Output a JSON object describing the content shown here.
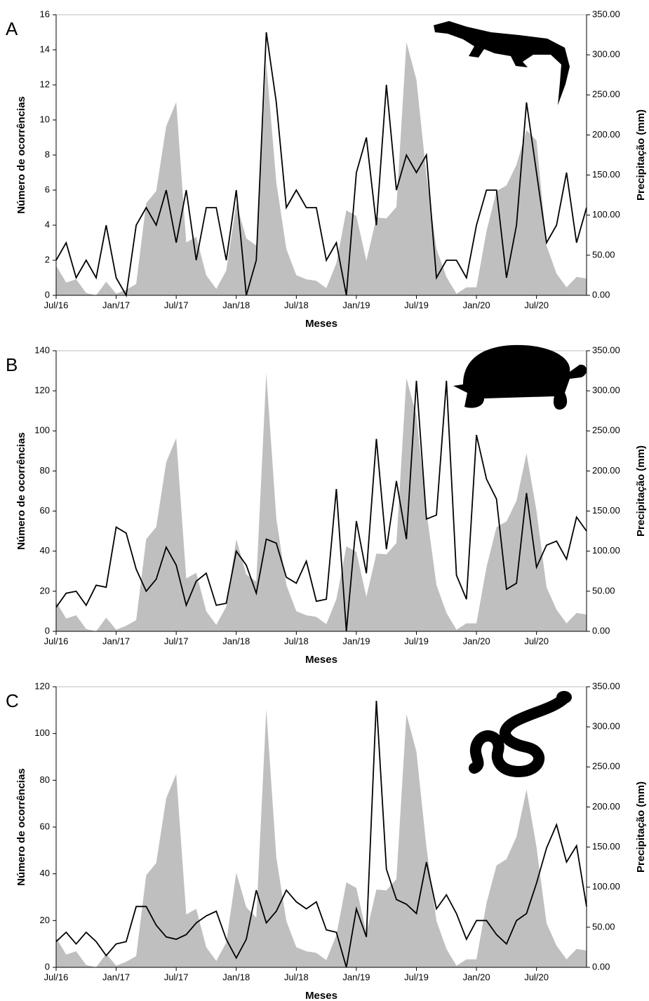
{
  "chart_data": [
    {
      "type": "line",
      "panel": "A",
      "x_label": "Meses",
      "y_label": "Número de ocorrências",
      "y2_label": "Precipitação (mm)",
      "categories": [
        "Jul/16",
        null,
        null,
        null,
        null,
        null,
        "Jan/17",
        null,
        null,
        null,
        null,
        null,
        "Jul/17",
        null,
        null,
        null,
        null,
        null,
        "Jan/18",
        null,
        null,
        null,
        null,
        null,
        "Jul/18",
        null,
        null,
        null,
        null,
        null,
        "Jan/19",
        null,
        null,
        null,
        null,
        null,
        "Jul/19",
        null,
        null,
        null,
        null,
        null,
        "Jan/20",
        null,
        null,
        null,
        null,
        null,
        "Jul/20",
        null,
        null,
        null,
        null,
        null
      ],
      "ylim": [
        0,
        16
      ],
      "yticks": [
        0,
        2,
        4,
        6,
        8,
        10,
        12,
        14,
        16
      ],
      "y2lim": [
        0,
        350
      ],
      "y2ticks": [
        {
          "value": 0,
          "label": "0.00"
        },
        {
          "value": 50,
          "label": "50.00"
        },
        {
          "value": 100,
          "label": "100.00"
        },
        {
          "value": 150,
          "label": "150.00"
        },
        {
          "value": 200,
          "label": "200.00"
        },
        {
          "value": 250,
          "label": "250.00"
        },
        {
          "value": 300,
          "label": "300.00"
        },
        {
          "value": 350,
          "label": "350.00"
        }
      ],
      "series": [
        {
          "type": "area",
          "axis": "y2",
          "color": "#bfbfbf",
          "values": [
            37,
            16,
            20,
            3,
            0,
            17,
            2,
            7,
            14,
            115,
            130,
            211,
            241,
            66,
            73,
            25,
            8,
            31,
            115,
            71,
            62,
            290,
            141,
            58,
            25,
            20,
            18,
            9,
            40,
            106,
            99,
            43,
            97,
            96,
            110,
            316,
            269,
            150,
            58,
            23,
            2,
            10,
            10,
            80,
            130,
            137,
            163,
            206,
            193,
            62,
            27,
            10,
            23,
            21
          ]
        },
        {
          "type": "line",
          "color": "#000000",
          "values": [
            2,
            3,
            1,
            2,
            1,
            4,
            1,
            0,
            4,
            5,
            4,
            6,
            3,
            6,
            2,
            5,
            5,
            2,
            6,
            0,
            2,
            15,
            11,
            5,
            6,
            5,
            5,
            2,
            3,
            0,
            7,
            9,
            4,
            12,
            6,
            8,
            7,
            8,
            1,
            2,
            2,
            1,
            4,
            6,
            6,
            1,
            4,
            11,
            7,
            3,
            4,
            7,
            3,
            5
          ]
        }
      ]
    },
    {
      "type": "line",
      "panel": "B",
      "x_label": "Meses",
      "y_label": "Número de ocorrências",
      "y2_label": "Precipitação (mm)",
      "categories": [
        "Jul/16",
        null,
        null,
        null,
        null,
        null,
        "Jan/17",
        null,
        null,
        null,
        null,
        null,
        "Jul/17",
        null,
        null,
        null,
        null,
        null,
        "Jan/18",
        null,
        null,
        null,
        null,
        null,
        "Jul/18",
        null,
        null,
        null,
        null,
        null,
        "Jan/19",
        null,
        null,
        null,
        null,
        null,
        "Jul/19",
        null,
        null,
        null,
        null,
        null,
        "Jan/20",
        null,
        null,
        null,
        null,
        null,
        "Jul/20",
        null,
        null,
        null,
        null,
        null
      ],
      "ylim": [
        0,
        140
      ],
      "yticks": [
        0,
        20,
        40,
        60,
        80,
        100,
        120,
        140
      ],
      "y2lim": [
        0,
        350
      ],
      "y2ticks": [
        {
          "value": 0,
          "label": "0.00"
        },
        {
          "value": 50,
          "label": "50.00"
        },
        {
          "value": 100,
          "label": "100.00"
        },
        {
          "value": 150,
          "label": "150.00"
        },
        {
          "value": 200,
          "label": "200.00"
        },
        {
          "value": 250,
          "label": "250.00"
        },
        {
          "value": 300,
          "label": "300.00"
        },
        {
          "value": 350,
          "label": "350.00"
        }
      ],
      "series": [
        {
          "type": "area",
          "axis": "y2",
          "color": "#bfbfbf",
          "values": [
            37,
            16,
            20,
            3,
            0,
            17,
            2,
            7,
            14,
            115,
            130,
            211,
            241,
            66,
            73,
            25,
            8,
            31,
            115,
            71,
            62,
            322,
            141,
            58,
            25,
            20,
            18,
            9,
            40,
            106,
            99,
            43,
            97,
            96,
            110,
            316,
            269,
            150,
            58,
            23,
            2,
            10,
            10,
            80,
            130,
            137,
            163,
            222,
            150,
            55,
            27,
            10,
            23,
            21
          ]
        },
        {
          "type": "line",
          "color": "#000000",
          "values": [
            12,
            19,
            20,
            13,
            23,
            22,
            52,
            49,
            31,
            20,
            26,
            42,
            33,
            13,
            25,
            29,
            13,
            14,
            40,
            33,
            19,
            46,
            44,
            27,
            24,
            35,
            15,
            16,
            71,
            0,
            55,
            29,
            96,
            41,
            75,
            46,
            125,
            56,
            58,
            125,
            28,
            16,
            98,
            76,
            66,
            21,
            24,
            69,
            32,
            43,
            45,
            36,
            57,
            50
          ]
        }
      ]
    },
    {
      "type": "line",
      "panel": "C",
      "x_label": "Meses",
      "y_label": "Número de ocorrências",
      "y2_label": "Precipitação (mm)",
      "categories": [
        "Jul/16",
        null,
        null,
        null,
        null,
        null,
        "Jan/17",
        null,
        null,
        null,
        null,
        null,
        "Jul/17",
        null,
        null,
        null,
        null,
        null,
        "Jan/18",
        null,
        null,
        null,
        null,
        null,
        "Jul/18",
        null,
        null,
        null,
        null,
        null,
        "Jan/19",
        null,
        null,
        null,
        null,
        null,
        "Jul/19",
        null,
        null,
        null,
        null,
        null,
        "Jan/20",
        null,
        null,
        null,
        null,
        null,
        "Jul/20",
        null,
        null,
        null,
        null,
        null
      ],
      "ylim": [
        0,
        120
      ],
      "yticks": [
        0,
        20,
        40,
        60,
        80,
        100,
        120
      ],
      "y2lim": [
        0,
        350
      ],
      "y2ticks": [
        {
          "value": 0,
          "label": "0.00"
        },
        {
          "value": 50,
          "label": "50.00"
        },
        {
          "value": 100,
          "label": "100.00"
        },
        {
          "value": 150,
          "label": "150.00"
        },
        {
          "value": 200,
          "label": "200.00"
        },
        {
          "value": 250,
          "label": "250.00"
        },
        {
          "value": 300,
          "label": "300.00"
        },
        {
          "value": 350,
          "label": "350.00"
        }
      ],
      "series": [
        {
          "type": "area",
          "axis": "y2",
          "color": "#bfbfbf",
          "values": [
            37,
            16,
            20,
            3,
            0,
            17,
            2,
            7,
            14,
            115,
            130,
            211,
            241,
            66,
            73,
            25,
            8,
            31,
            118,
            75,
            62,
            322,
            137,
            58,
            25,
            20,
            18,
            9,
            40,
            106,
            99,
            43,
            97,
            96,
            110,
            316,
            269,
            150,
            58,
            23,
            2,
            10,
            10,
            80,
            127,
            135,
            163,
            222,
            150,
            55,
            27,
            10,
            23,
            21
          ]
        },
        {
          "type": "line",
          "color": "#000000",
          "values": [
            11,
            15,
            10,
            15,
            11,
            5,
            10,
            11,
            26,
            26,
            18,
            13,
            12,
            14,
            19,
            22,
            24,
            12,
            4,
            12,
            33,
            19,
            24,
            33,
            28,
            25,
            28,
            16,
            15,
            0,
            25,
            13,
            114,
            42,
            29,
            27,
            23,
            45,
            25,
            31,
            23,
            12,
            20,
            20,
            14,
            10,
            20,
            23,
            36,
            51,
            61,
            45,
            52,
            26
          ]
        }
      ]
    }
  ]
}
